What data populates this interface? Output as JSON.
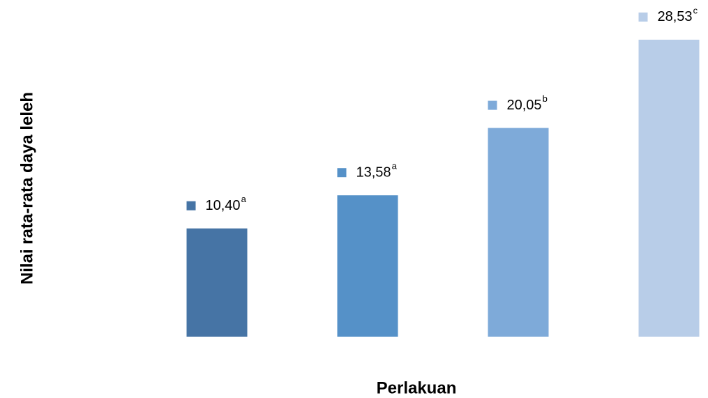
{
  "chart_data": {
    "type": "bar",
    "xlabel": "Perlakuan",
    "ylabel": "Nilai rata-rata daya leleh",
    "categories": [
      null,
      null,
      null,
      null
    ],
    "values": [
      10.4,
      13.58,
      20.05,
      28.53
    ],
    "value_labels": [
      "10,40",
      "13,58",
      "20,05",
      "28,53"
    ],
    "annotations": [
      "a",
      "a",
      "b",
      "c"
    ],
    "colors": [
      "#4674a5",
      "#5591c8",
      "#7eaad9",
      "#b8cde8"
    ],
    "ylim": [
      0,
      30
    ]
  }
}
